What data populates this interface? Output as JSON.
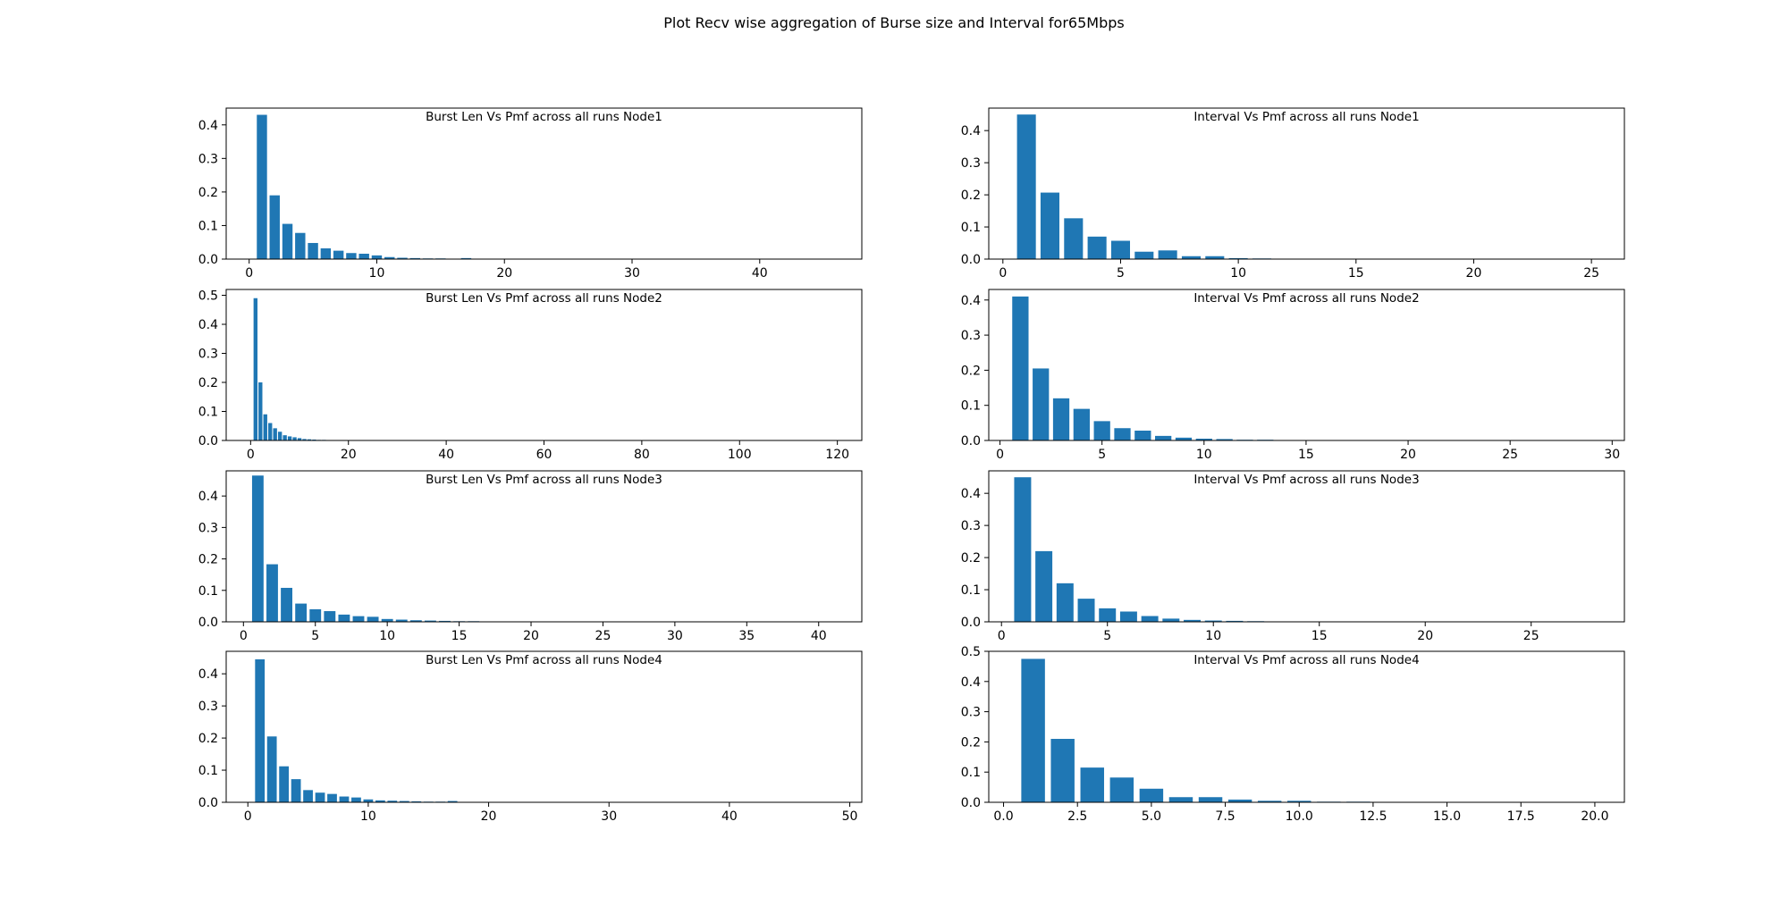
{
  "figure": {
    "suptitle": "Plot Recv wise aggregation of Burse size and Interval for65Mbps",
    "bar_color": "#1f77b4"
  },
  "chart_data": [
    {
      "type": "bar",
      "title": "Burst Len  Vs Pmf across all runs Node1",
      "xlim": [
        -1.8,
        48
      ],
      "ylim": [
        0,
        0.45
      ],
      "xticks": [
        0,
        10,
        20,
        30,
        40
      ],
      "yticks": [
        0.0,
        0.1,
        0.2,
        0.3,
        0.4
      ],
      "x": [
        1,
        2,
        3,
        4,
        5,
        6,
        7,
        8,
        9,
        10,
        11,
        12,
        13,
        14,
        15,
        17
      ],
      "values": [
        0.43,
        0.19,
        0.105,
        0.078,
        0.048,
        0.032,
        0.025,
        0.018,
        0.016,
        0.011,
        0.006,
        0.004,
        0.003,
        0.002,
        0.002,
        0.003
      ]
    },
    {
      "type": "bar",
      "title": "Interval Vs Pmf across all runs Node1",
      "xlim": [
        -0.6,
        26.4
      ],
      "ylim": [
        0,
        0.47
      ],
      "xticks": [
        0,
        5,
        10,
        15,
        20,
        25
      ],
      "yticks": [
        0.0,
        0.1,
        0.2,
        0.3,
        0.4
      ],
      "x": [
        1,
        2,
        3,
        4,
        5,
        6,
        7,
        8,
        9,
        10,
        11
      ],
      "values": [
        0.45,
        0.207,
        0.127,
        0.07,
        0.057,
        0.023,
        0.027,
        0.009,
        0.009,
        0.003,
        0.002
      ]
    },
    {
      "type": "bar",
      "title": "Burst Len  Vs Pmf across all runs Node2",
      "xlim": [
        -5,
        125
      ],
      "ylim": [
        0,
        0.52
      ],
      "xticks": [
        0,
        20,
        40,
        60,
        80,
        100,
        120
      ],
      "yticks": [
        0.0,
        0.1,
        0.2,
        0.3,
        0.4,
        0.5
      ],
      "x": [
        1,
        2,
        3,
        4,
        5,
        6,
        7,
        8,
        9,
        10,
        11,
        12,
        13,
        14,
        15,
        16
      ],
      "values": [
        0.49,
        0.2,
        0.09,
        0.06,
        0.042,
        0.03,
        0.018,
        0.014,
        0.011,
        0.008,
        0.005,
        0.004,
        0.003,
        0.002,
        0.002,
        0.001
      ]
    },
    {
      "type": "bar",
      "title": "Interval Vs Pmf across all runs Node2",
      "xlim": [
        -0.55,
        30.6
      ],
      "ylim": [
        0,
        0.43
      ],
      "xticks": [
        0,
        5,
        10,
        15,
        20,
        25,
        30
      ],
      "yticks": [
        0.0,
        0.1,
        0.2,
        0.3,
        0.4
      ],
      "x": [
        1,
        2,
        3,
        4,
        5,
        6,
        7,
        8,
        9,
        10,
        11,
        12,
        13,
        14,
        17,
        18
      ],
      "values": [
        0.41,
        0.205,
        0.12,
        0.09,
        0.055,
        0.035,
        0.028,
        0.013,
        0.008,
        0.005,
        0.004,
        0.002,
        0.002,
        0.001,
        0.001,
        0.001
      ]
    },
    {
      "type": "bar",
      "title": "Burst Len  Vs Pmf across all runs Node3",
      "xlim": [
        -1.2,
        43
      ],
      "ylim": [
        0,
        0.48
      ],
      "xticks": [
        0,
        5,
        10,
        15,
        20,
        25,
        30,
        35,
        40
      ],
      "yticks": [
        0.0,
        0.1,
        0.2,
        0.3,
        0.4
      ],
      "x": [
        1,
        2,
        3,
        4,
        5,
        6,
        7,
        8,
        9,
        10,
        11,
        12,
        13,
        14,
        15,
        16
      ],
      "values": [
        0.465,
        0.183,
        0.108,
        0.058,
        0.04,
        0.034,
        0.023,
        0.018,
        0.016,
        0.009,
        0.007,
        0.005,
        0.004,
        0.003,
        0.002,
        0.002
      ]
    },
    {
      "type": "bar",
      "title": "Interval Vs Pmf across all runs Node3",
      "xlim": [
        -0.6,
        29.4
      ],
      "ylim": [
        0,
        0.47
      ],
      "xticks": [
        0,
        5,
        10,
        15,
        20,
        25
      ],
      "yticks": [
        0.0,
        0.1,
        0.2,
        0.3,
        0.4
      ],
      "x": [
        1,
        2,
        3,
        4,
        5,
        6,
        7,
        8,
        9,
        10,
        11,
        12
      ],
      "values": [
        0.45,
        0.22,
        0.12,
        0.072,
        0.042,
        0.032,
        0.018,
        0.01,
        0.006,
        0.004,
        0.003,
        0.002
      ]
    },
    {
      "type": "bar",
      "title": "Burst Len  Vs Pmf across all runs Node4",
      "xlim": [
        -1.8,
        51
      ],
      "ylim": [
        0,
        0.47
      ],
      "xticks": [
        0,
        10,
        20,
        30,
        40,
        50
      ],
      "yticks": [
        0.0,
        0.1,
        0.2,
        0.3,
        0.4
      ],
      "x": [
        1,
        2,
        3,
        4,
        5,
        6,
        7,
        8,
        9,
        10,
        11,
        12,
        13,
        14,
        15,
        16,
        17
      ],
      "values": [
        0.445,
        0.205,
        0.112,
        0.072,
        0.038,
        0.03,
        0.026,
        0.018,
        0.015,
        0.009,
        0.006,
        0.005,
        0.004,
        0.003,
        0.002,
        0.002,
        0.004
      ]
    },
    {
      "type": "bar",
      "title": "Interval Vs Pmf across all runs Node4",
      "xlim": [
        -0.5,
        21.0
      ],
      "ylim": [
        0,
        0.5
      ],
      "xticks": [
        0,
        2.5,
        5,
        7.5,
        10,
        12.5,
        15,
        17.5,
        20
      ],
      "xticklabels": [
        "0.0",
        "2.5",
        "5.0",
        "7.5",
        "10.0",
        "12.5",
        "15.0",
        "17.5",
        "20.0"
      ],
      "yticks": [
        0.0,
        0.1,
        0.2,
        0.3,
        0.4,
        0.5
      ],
      "x": [
        1,
        2,
        3,
        4,
        5,
        6,
        7,
        8,
        9,
        10,
        11,
        12
      ],
      "values": [
        0.475,
        0.21,
        0.115,
        0.082,
        0.045,
        0.017,
        0.017,
        0.009,
        0.005,
        0.005,
        0.002,
        0.002
      ]
    }
  ]
}
